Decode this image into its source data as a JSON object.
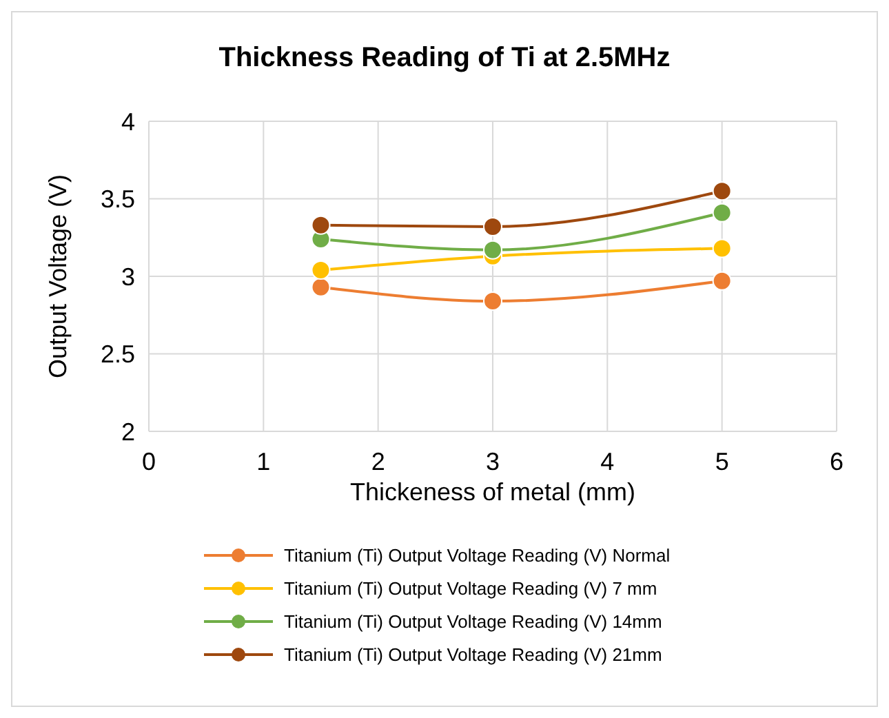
{
  "chart_data": {
    "type": "line",
    "title": "Thickness Reading of Ti at 2.5MHz",
    "xlabel": "Thickeness of metal (mm)",
    "ylabel": "Output Voltage (V)",
    "x": [
      1.5,
      3,
      5
    ],
    "series": [
      {
        "name": "Titanium (Ti) Output Voltage Reading (V) Normal",
        "color": "#ed7d31",
        "values": [
          2.93,
          2.84,
          2.97
        ]
      },
      {
        "name": "Titanium (Ti) Output Voltage Reading (V) 7 mm",
        "color": "#ffc000",
        "values": [
          3.04,
          3.13,
          3.18
        ]
      },
      {
        "name": "Titanium (Ti) Output Voltage Reading (V) 14mm",
        "color": "#70ad47",
        "values": [
          3.24,
          3.17,
          3.41
        ]
      },
      {
        "name": "Titanium (Ti) Output Voltage Reading (V) 21mm",
        "color": "#9e480e",
        "values": [
          3.33,
          3.32,
          3.55
        ]
      }
    ],
    "xlim": [
      0,
      6
    ],
    "xticks": [
      0,
      1,
      2,
      3,
      4,
      5,
      6
    ],
    "ylim": [
      2,
      4
    ],
    "yticks": [
      2,
      2.5,
      3,
      3.5,
      4
    ],
    "grid": true,
    "legend": "bottom",
    "marker": "circle",
    "line_style": "solid"
  }
}
